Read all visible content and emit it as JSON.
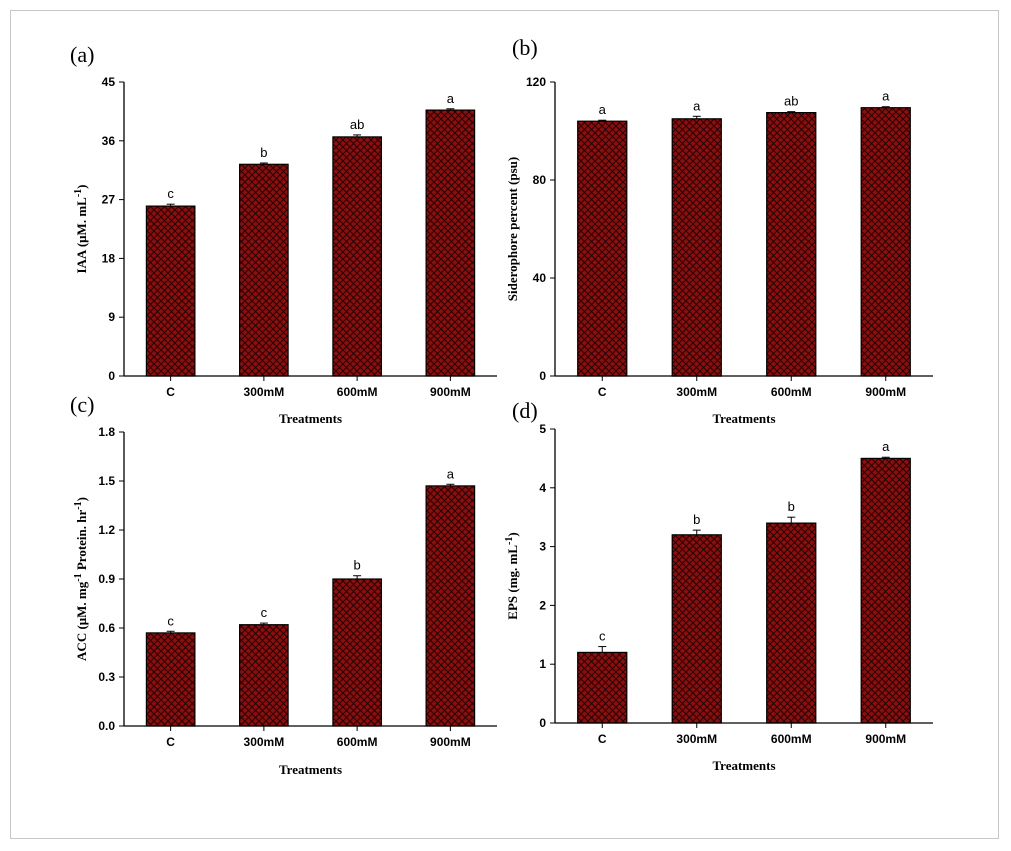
{
  "chart_data": [
    {
      "type": "bar",
      "panel_label": "(a)",
      "categories": [
        "C",
        "300mM",
        "600mM",
        "900mM"
      ],
      "values": [
        26.0,
        32.4,
        36.6,
        40.7
      ],
      "errors": [
        0.3,
        0.2,
        0.3,
        0.2
      ],
      "letters": [
        "c",
        "b",
        "ab",
        "a"
      ],
      "xlabel": "Treatments",
      "ylabel_parts": [
        "IAA (μM. mL",
        "-1",
        ")"
      ],
      "ylim": [
        0,
        45
      ],
      "yticks": [
        0,
        9,
        18,
        27,
        36,
        45
      ],
      "show_xlabel": true
    },
    {
      "type": "bar",
      "panel_label": "(b)",
      "categories": [
        "C",
        "300mM",
        "600mM",
        "900mM"
      ],
      "values": [
        104,
        105,
        107.5,
        109.5
      ],
      "errors": [
        0.4,
        1.0,
        0.4,
        0.4
      ],
      "letters": [
        "a",
        "a",
        "ab",
        "a"
      ],
      "xlabel": "Treatments",
      "ylabel_parts": [
        "Siderophore percent (psu)"
      ],
      "ylim": [
        0,
        120
      ],
      "yticks": [
        0,
        40,
        80,
        120
      ],
      "show_xlabel": true
    },
    {
      "type": "bar",
      "panel_label": "(c)",
      "categories": [
        "C",
        "300mM",
        "600mM",
        "900mM"
      ],
      "values": [
        0.57,
        0.62,
        0.9,
        1.47
      ],
      "errors": [
        0.01,
        0.01,
        0.02,
        0.01
      ],
      "letters": [
        "c",
        "c",
        "b",
        "a"
      ],
      "xlabel": "Treatments",
      "ylabel_parts": [
        "ACC (μM. mg",
        "-1",
        " Protein. hr",
        "-1",
        ")"
      ],
      "ylim": [
        0,
        1.8
      ],
      "yticks": [
        0.0,
        0.3,
        0.6,
        0.9,
        1.2,
        1.5,
        1.8
      ],
      "show_xlabel": true
    },
    {
      "type": "bar",
      "panel_label": "(d)",
      "categories": [
        "C",
        "300mM",
        "600mM",
        "900mM"
      ],
      "values": [
        1.2,
        3.2,
        3.4,
        4.5
      ],
      "errors": [
        0.1,
        0.08,
        0.1,
        0.02
      ],
      "letters": [
        "c",
        "b",
        "b",
        "a"
      ],
      "xlabel": "Treatments",
      "ylabel_parts": [
        "EPS (mg. mL",
        "-1",
        ")"
      ],
      "ylim": [
        0,
        5
      ],
      "yticks": [
        0,
        1,
        2,
        3,
        4,
        5
      ],
      "show_xlabel": true
    }
  ],
  "colors": {
    "bar_fill": "#8c0f0f",
    "hatch": "#2a0000",
    "axis": "#000000"
  }
}
